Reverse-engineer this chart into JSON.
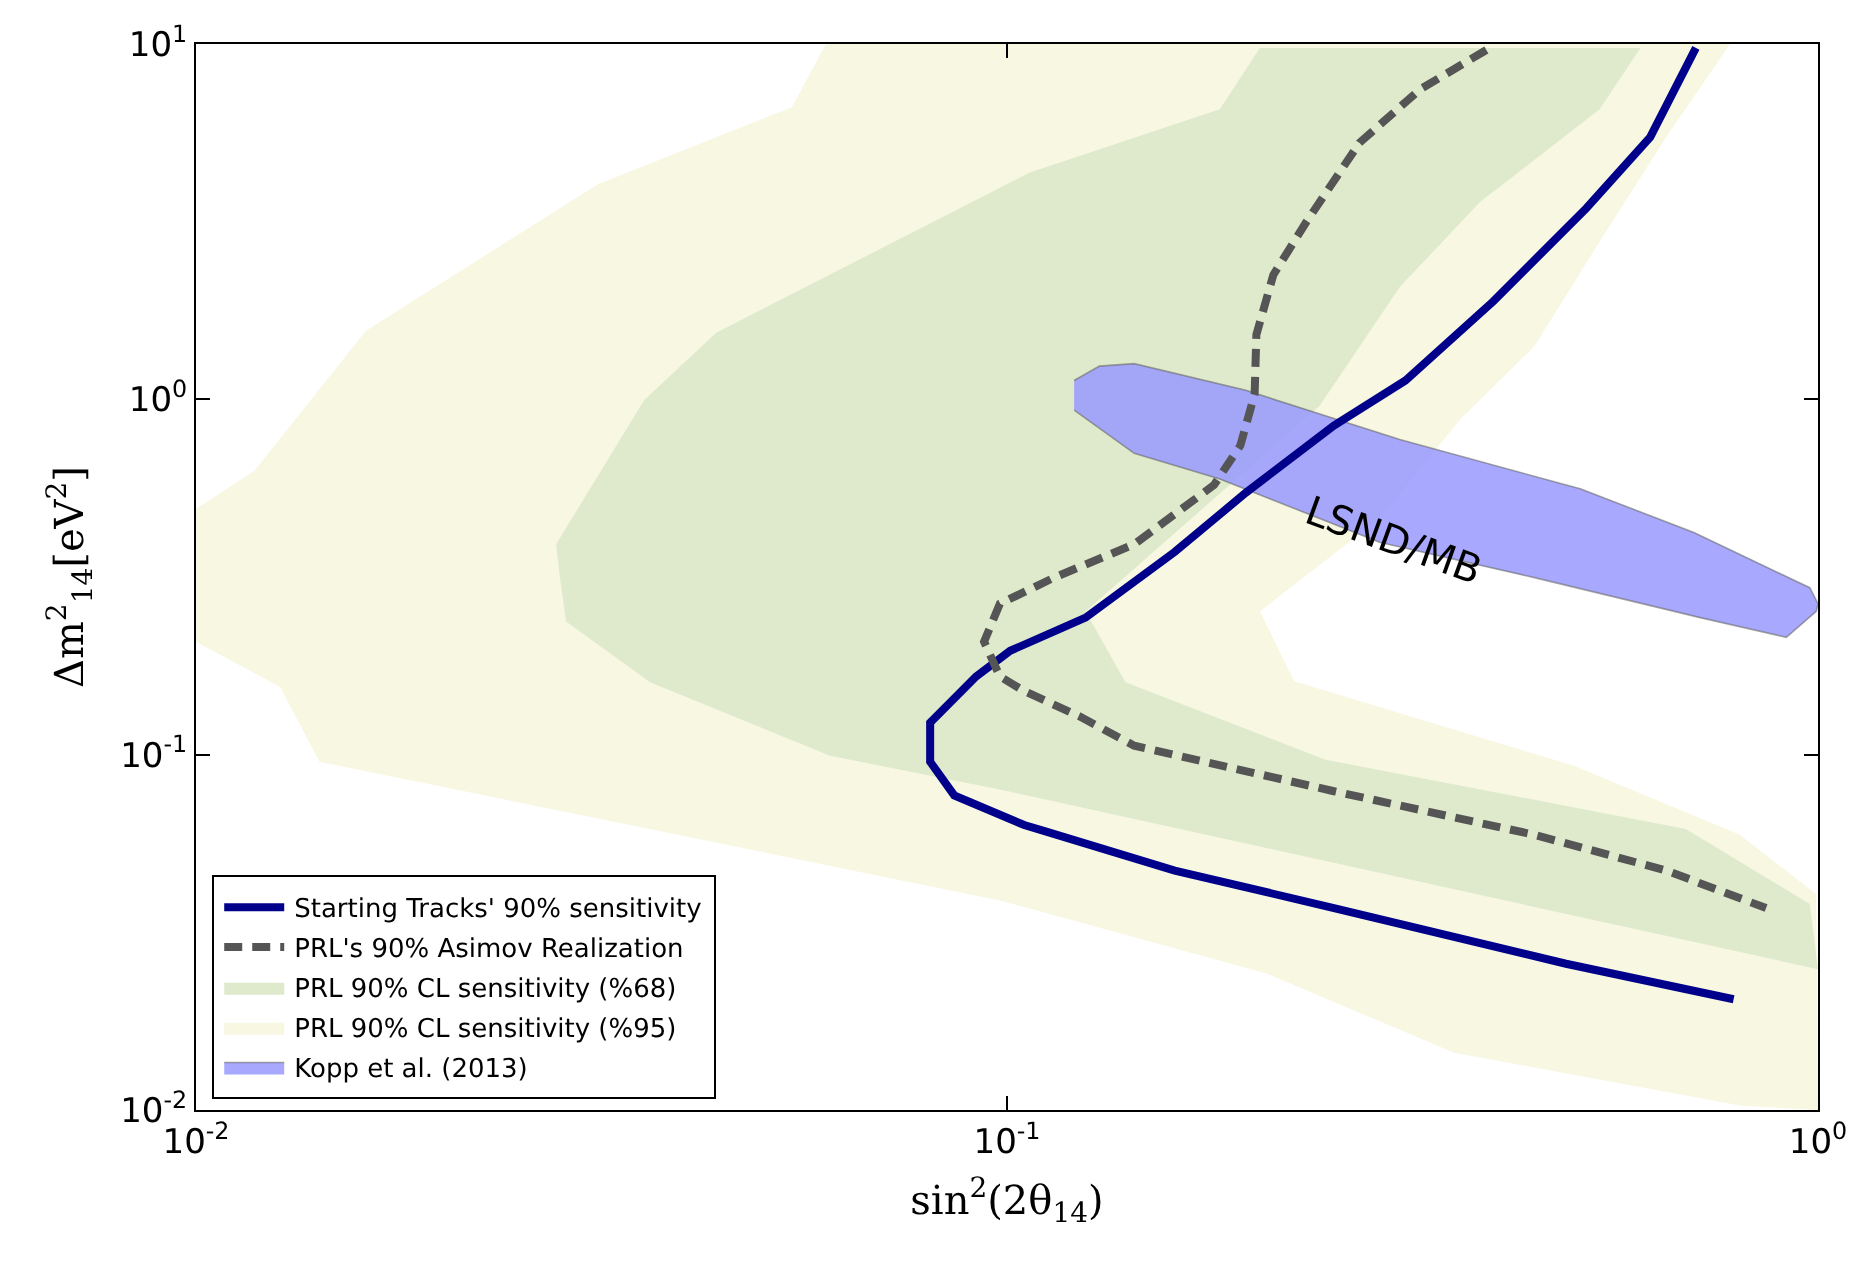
{
  "chart_data": {
    "type": "line",
    "xlabel": "sin$^{2}$(2θ$_{14}$)",
    "ylabel": "Δm$^{2}$$_{14}$[eV$^{2}$]",
    "log": "xy",
    "grid": false,
    "legend": "bottom left",
    "marker": "none",
    "xlim": [
      0.01,
      1
    ],
    "ylim": [
      0.01,
      10
    ],
    "xticks": [
      {
        "value": 0.01,
        "label": "10$^{-2}$"
      },
      {
        "value": 0.1,
        "label": "10$^{-1}$"
      },
      {
        "value": 1,
        "label": "10$^{0}$"
      }
    ],
    "yticks": [
      {
        "value": 0.01,
        "label": "10$^{-2}$"
      },
      {
        "value": 0.1,
        "label": "10$^{-1}$"
      },
      {
        "value": 1,
        "label": "10$^{0}$"
      },
      {
        "value": 10,
        "label": "10$^{1}$"
      }
    ],
    "series": [
      {
        "name": "Starting Tracks' 90% sensitivity",
        "type": "line",
        "color": "#00008b",
        "line_style": "solid",
        "x": [
          0.707,
          0.621,
          0.518,
          0.398,
          0.31,
          0.253,
          0.197,
          0.161,
          0.125,
          0.1009,
          0.0916,
          0.0804,
          0.0804,
          0.0861,
          0.105,
          0.111,
          0.161,
          0.253,
          0.489,
          0.787
        ],
        "values": [
          9.75,
          5.47,
          3.45,
          1.89,
          1.13,
          0.844,
          0.546,
          0.372,
          0.243,
          0.196,
          0.166,
          0.123,
          0.0955,
          0.0768,
          0.0634,
          0.061,
          0.0472,
          0.037,
          0.0258,
          0.0205
        ]
      },
      {
        "name": "PRL's 90% Asimov Realization",
        "type": "line",
        "color": "#555555",
        "line_style": "dashed",
        "x": [
          0.39,
          0.323,
          0.272,
          0.234,
          0.213,
          0.203,
          0.202,
          0.194,
          0.18,
          0.1435,
          0.1143,
          0.098,
          0.0937,
          0.098,
          0.105,
          0.123,
          0.1435,
          0.253,
          0.447,
          0.65,
          0.863
        ],
        "values": [
          9.62,
          7.45,
          5.27,
          3.16,
          2.24,
          1.52,
          1.035,
          0.742,
          0.574,
          0.391,
          0.315,
          0.266,
          0.208,
          0.166,
          0.151,
          0.128,
          0.106,
          0.0789,
          0.0595,
          0.0472,
          0.037
        ]
      },
      {
        "name": "PRL 90% CL sensitivity (%68)",
        "type": "area",
        "color": "#dfeacd",
        "x": [
          0.0278,
          0.0357,
          0.0438,
          0.1067,
          0.183,
          0.205,
          0.604,
          0.538,
          0.383,
          0.305,
          0.243,
          0.125,
          0.14,
          0.247,
          0.687,
          0.977,
          1.0,
          0.098,
          0.0605,
          0.0363,
          0.0286,
          0.0281
        ],
        "values": [
          0.391,
          0.996,
          1.54,
          4.35,
          6.55,
          9.75,
          9.75,
          6.55,
          3.59,
          2.07,
          0.959,
          0.253,
          0.16,
          0.0968,
          0.0618,
          0.038,
          0.0249,
          0.0798,
          0.0993,
          0.16,
          0.237,
          0.315
        ]
      },
      {
        "name": "PRL 90% CL sensitivity (%95)",
        "type": "area",
        "color": "#f7f7e2",
        "x": [
          0.01,
          0.0118,
          0.0162,
          0.0313,
          0.0543,
          0.0598,
          0.779,
          0.65,
          0.538,
          0.447,
          0.362,
          0.288,
          0.205,
          0.226,
          0.5,
          0.801,
          0.995,
          1.0,
          0.801,
          0.356,
          0.209,
          0.098,
          0.0142,
          0.0127,
          0.01
        ],
        "values": [
          0.492,
          0.628,
          1.56,
          4.03,
          6.64,
          10,
          10,
          5.47,
          2.78,
          1.41,
          0.877,
          0.462,
          0.253,
          0.161,
          0.0931,
          0.0595,
          0.0405,
          0.01,
          0.0103,
          0.0145,
          0.0242,
          0.0389,
          0.0955,
          0.155,
          0.208
        ]
      },
      {
        "name": "Kopp et al. (2013)",
        "type": "area",
        "color": "#9999ff",
        "x": [
          0.121,
          0.13,
          0.1435,
          0.197,
          0.305,
          0.509,
          0.703,
          0.977,
          1.0,
          0.995,
          0.914,
          0.716,
          0.447,
          0.288,
          0.183,
          0.1435,
          0.121
        ],
        "values": [
          1.13,
          1.24,
          1.26,
          1.06,
          0.771,
          0.56,
          0.422,
          0.295,
          0.266,
          0.253,
          0.214,
          0.243,
          0.315,
          0.396,
          0.597,
          0.705,
          0.933
        ]
      }
    ],
    "annotations": [
      "LSND/MB"
    ]
  }
}
